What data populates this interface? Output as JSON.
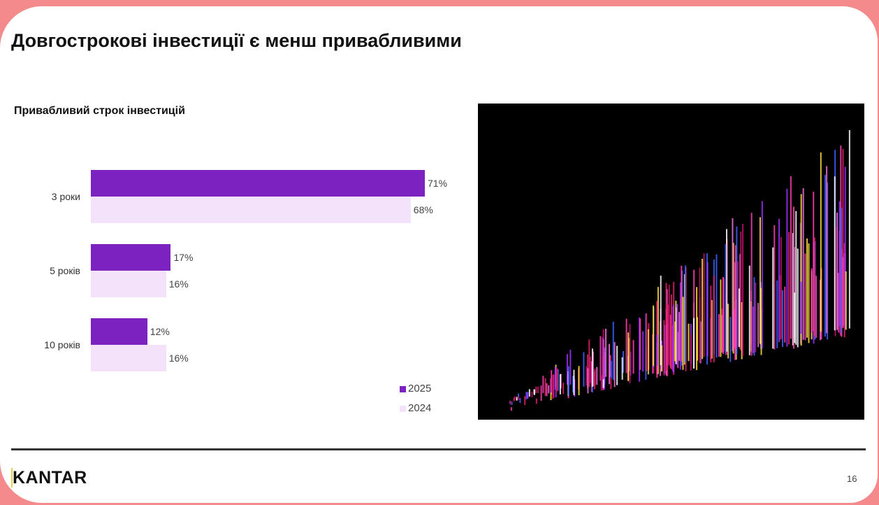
{
  "title": "Довгострокові інвестиції є менш привабливими",
  "footer": {
    "logo": "KANTAR",
    "page_number": "16"
  },
  "colors": {
    "series_2025": "#7b22c0",
    "series_2024": "#f4e2fb"
  },
  "chart_data": {
    "type": "bar",
    "orientation": "horizontal",
    "title": "Привабливий строк інвестицій",
    "categories": [
      "3 роки",
      "5 років",
      "10 років"
    ],
    "series": [
      {
        "name": "2025",
        "values": [
          71,
          17,
          12
        ],
        "labels": [
          "71%",
          "17%",
          "12%"
        ]
      },
      {
        "name": "2024",
        "values": [
          68,
          16,
          16
        ],
        "labels": [
          "68%",
          "16%",
          "16%"
        ]
      }
    ],
    "legend": [
      "2025",
      "2024"
    ],
    "legend_position": "bottom-right",
    "grid": false,
    "xlim": [
      0,
      71
    ]
  }
}
